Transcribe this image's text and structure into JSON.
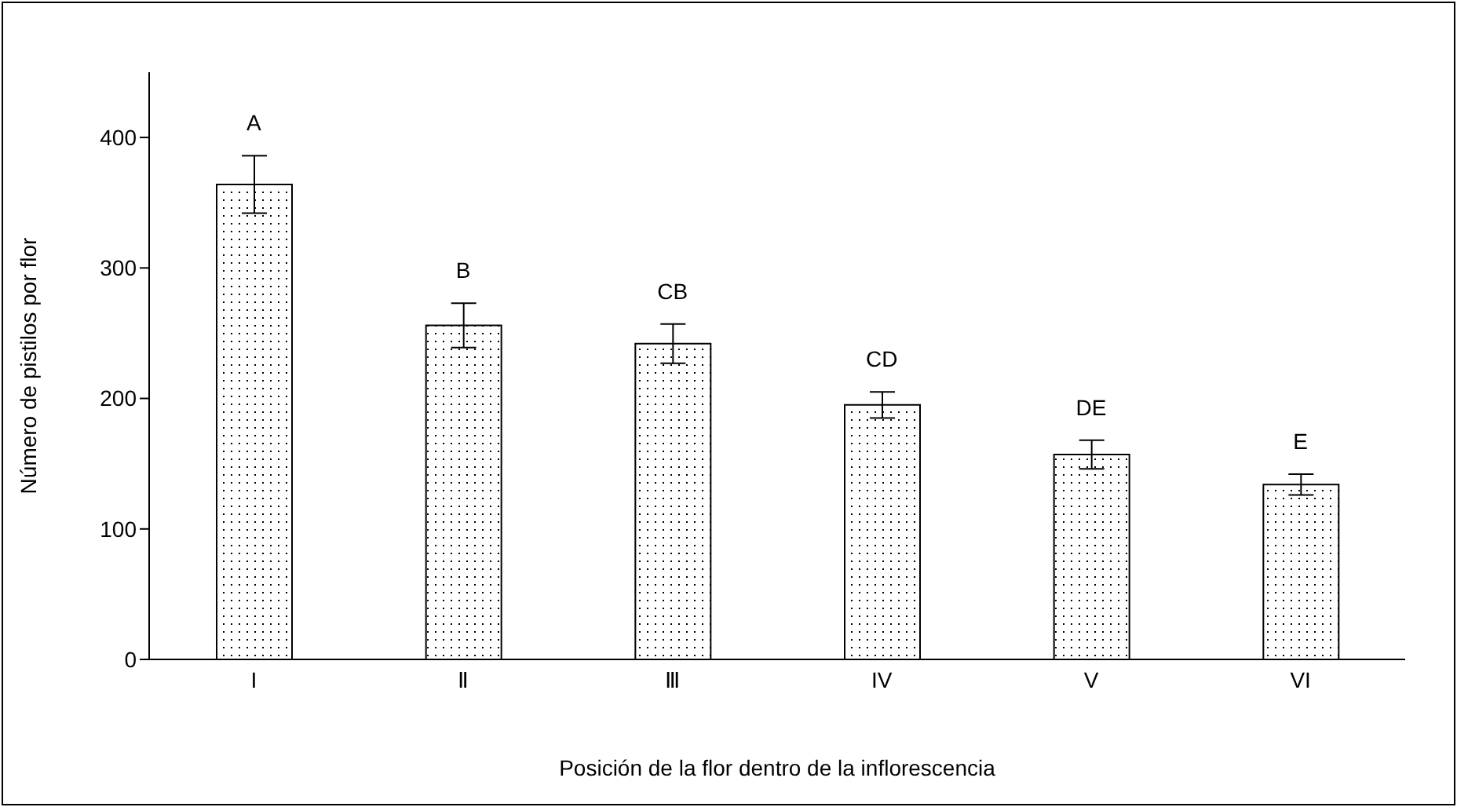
{
  "chart_data": {
    "type": "bar",
    "xlabel": "Posición de la flor dentro de la inflorescencia",
    "ylabel": "Número de pistilos por flor",
    "categories": [
      "I",
      "Ⅱ",
      "Ⅲ",
      "IV",
      "V",
      "VI"
    ],
    "values": [
      364,
      256,
      242,
      195,
      157,
      134
    ],
    "errors": [
      22,
      17,
      15,
      10,
      11,
      8
    ],
    "color": "#000000",
    "ylim": [
      0,
      450
    ],
    "yticks": [
      0,
      100,
      200,
      300,
      400
    ],
    "grid": false,
    "legend": false,
    "annotations": [
      {
        "text": "A",
        "x": "I",
        "y": 386
      },
      {
        "text": "B",
        "x": "Ⅱ",
        "y": 273
      },
      {
        "text": "CB",
        "x": "Ⅲ",
        "y": 257
      },
      {
        "text": "CD",
        "x": "IV",
        "y": 205
      },
      {
        "text": "DE",
        "x": "V",
        "y": 168
      },
      {
        "text": "E",
        "x": "VI",
        "y": 142
      }
    ]
  }
}
